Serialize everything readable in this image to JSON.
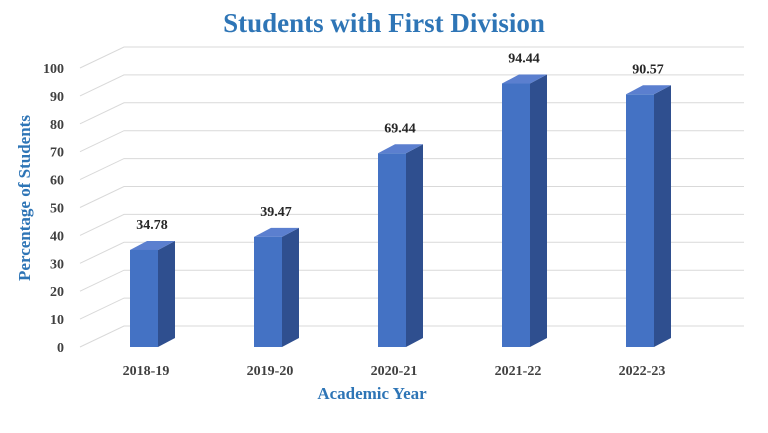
{
  "chart_data": {
    "type": "bar",
    "title": "Students with First Division",
    "xlabel": "Academic Year",
    "ylabel": "Percentage of Students",
    "categories": [
      "2018-19",
      "2019-20",
      "2020-21",
      "2021-22",
      "2022-23"
    ],
    "values": [
      34.78,
      39.47,
      69.44,
      94.44,
      90.57
    ],
    "data_labels": [
      "34.78",
      "39.47",
      "69.44",
      "94.44",
      "90.57"
    ],
    "yticks": [
      "0",
      "10",
      "20",
      "30",
      "40",
      "50",
      "60",
      "70",
      "80",
      "90",
      "100"
    ],
    "ylim": [
      0,
      100
    ],
    "grid": true,
    "three_d": true,
    "colors": {
      "title": "#2e75b6",
      "bar_front": "#4472c4",
      "bar_side": "#2f4f8f",
      "bar_top": "#5b7fcf",
      "grid": "#d9d9d9",
      "tick_text": "#404040",
      "data_label": "#262626"
    }
  }
}
